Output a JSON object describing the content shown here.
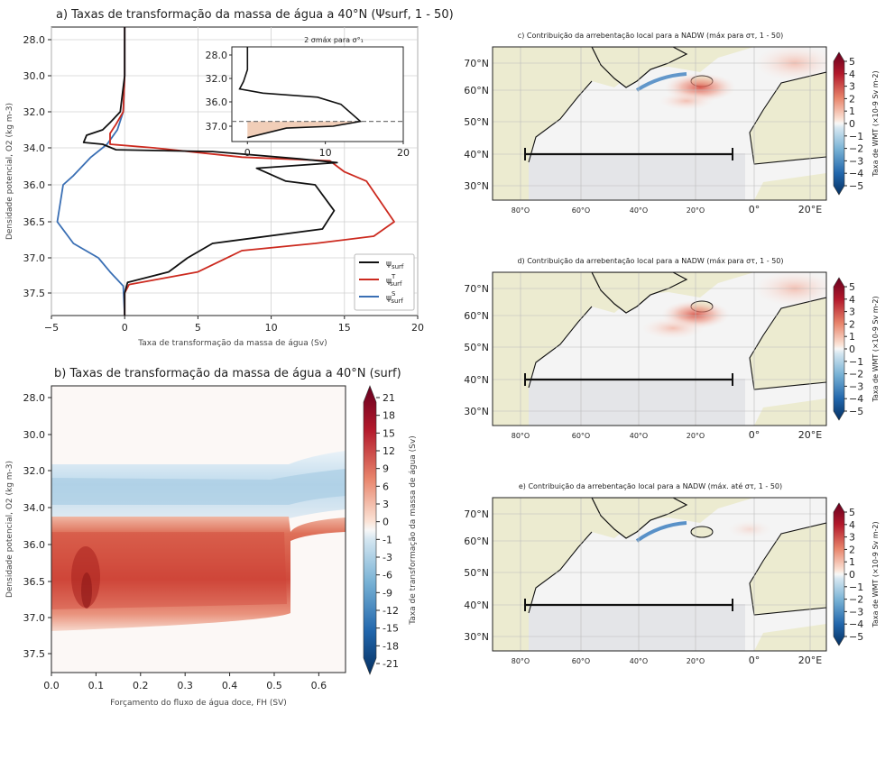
{
  "chart_data": [
    {
      "type": "line",
      "panel": "a",
      "title": "a) Taxas de transformação da massa de água a 40°N (Ψsurf, 1 - 50)",
      "xlabel": "Taxa de transformação da massa de água (Sv)",
      "ylabel": "Densidade potencial, O2 (kg m-3)",
      "xlim": [
        -5,
        20
      ],
      "ylim": [
        38.0,
        27.5
      ],
      "xticks": [
        "−5",
        "0",
        "5",
        "10",
        "15",
        "20"
      ],
      "yticks": [
        "28.0",
        "30.0",
        "32.0",
        "34.0",
        "36.0",
        "36.5",
        "37.0",
        "37.5"
      ],
      "grid": true,
      "legend_position": "bottom-right",
      "legend": [
        "ψsurf",
        "ψ^T surf",
        "ψ^S surf"
      ],
      "colors": {
        "total": "#111111",
        "thermal": "#cc2a1f",
        "haline": "#3a6fb4"
      },
      "series": [
        {
          "key": "total",
          "points": [
            [
              0,
              27.5
            ],
            [
              0,
              30.0
            ],
            [
              -0.3,
              32.0
            ],
            [
              -1,
              32.6
            ],
            [
              -1.5,
              33.0
            ],
            [
              -2.6,
              33.3
            ],
            [
              -2.8,
              33.7
            ],
            [
              -1.5,
              33.8
            ],
            [
              -0.6,
              34.1
            ],
            [
              6,
              34.2
            ],
            [
              12,
              34.6
            ],
            [
              14.5,
              34.8
            ],
            [
              9,
              35.1
            ],
            [
              11,
              35.8
            ],
            [
              13,
              36.0
            ],
            [
              14.3,
              36.35
            ],
            [
              13.5,
              36.6
            ],
            [
              6,
              36.8
            ],
            [
              4.3,
              37.0
            ],
            [
              3,
              37.2
            ],
            [
              0.2,
              37.35
            ],
            [
              0,
              37.5
            ],
            [
              0,
              38.0
            ]
          ]
        },
        {
          "key": "thermal",
          "points": [
            [
              0,
              27.5
            ],
            [
              0,
              30.0
            ],
            [
              -0.1,
              32.0
            ],
            [
              -0.6,
              32.7
            ],
            [
              -1,
              33.2
            ],
            [
              -1,
              33.8
            ],
            [
              2,
              34.0
            ],
            [
              8,
              34.5
            ],
            [
              14,
              34.7
            ],
            [
              15,
              35.3
            ],
            [
              16.5,
              35.8
            ],
            [
              18.4,
              36.5
            ],
            [
              17,
              36.7
            ],
            [
              13,
              36.8
            ],
            [
              8,
              36.9
            ],
            [
              5,
              37.2
            ],
            [
              0.3,
              37.38
            ],
            [
              0,
              37.5
            ],
            [
              0,
              38.0
            ]
          ]
        },
        {
          "key": "haline",
          "points": [
            [
              0,
              27.5
            ],
            [
              0,
              30.0
            ],
            [
              -0.1,
              32.0
            ],
            [
              -0.5,
              33.0
            ],
            [
              -1.2,
              33.8
            ],
            [
              -2.3,
              34.5
            ],
            [
              -3.5,
              35.5
            ],
            [
              -4.2,
              36.0
            ],
            [
              -4.6,
              36.5
            ],
            [
              -3.5,
              36.8
            ],
            [
              -1.8,
              37.0
            ],
            [
              -1,
              37.2
            ],
            [
              -0.1,
              37.4
            ],
            [
              0,
              38.0
            ]
          ]
        }
      ],
      "inset": {
        "title": "2 σmáx para σ°₁",
        "xticks": [
          "0",
          "10",
          "20"
        ],
        "yticks": [
          "28.0",
          "32.0",
          "36.0",
          "37.0"
        ],
        "xlim": [
          -2,
          20
        ],
        "ylim": [
          37.4,
          27.8
        ],
        "threshold": 36.8,
        "points": [
          [
            0,
            27.8
          ],
          [
            0,
            30.5
          ],
          [
            -0.5,
            32.5
          ],
          [
            -1,
            33.8
          ],
          [
            2,
            34.5
          ],
          [
            9,
            35.2
          ],
          [
            12,
            36.1
          ],
          [
            14.5,
            36.8
          ],
          [
            11,
            37.0
          ],
          [
            5,
            37.05
          ],
          [
            0,
            37.3
          ]
        ]
      }
    },
    {
      "type": "heatmap",
      "panel": "b",
      "title": "b) Taxas de transformação da massa de água a 40°N (surf)",
      "xlabel": "Forçamento do fluxo de água doce, FH (SV)",
      "ylabel": "Densidade potencial, O2 (kg m-3)",
      "xticks": [
        "0.0",
        "0.1",
        "0.2",
        "0.3",
        "0.4",
        "0.5",
        "0.6"
      ],
      "yticks": [
        "28.0",
        "30.0",
        "32.0",
        "34.0",
        "36.0",
        "36.5",
        "37.0",
        "37.5"
      ],
      "colorbar_label": "Taxa de transformação da massa de água (Sv)",
      "colorbar_ticks": [
        "21",
        "18",
        "15",
        "12",
        "9",
        "6",
        "3",
        "0",
        "-1",
        "-3",
        "-6",
        "-9",
        "-12",
        "-15",
        "-18",
        "-21"
      ]
    },
    {
      "type": "map",
      "panel": "c",
      "title": "c) Contribuição da arrebentação local para a NADW (máx para στ, 1 - 50)",
      "lat_ticks": [
        "70°N",
        "60°N",
        "50°N",
        "40°N",
        "30°N"
      ],
      "lon_ticks": [
        "80°O",
        "60°O",
        "40°O",
        "20°O",
        "0°",
        "20°E"
      ],
      "colorbar_label": "Taxa de WMT (×10-9 Sv m-2)",
      "colorbar_ticks": [
        "5",
        "4",
        "3",
        "2",
        "1",
        "0",
        "−1",
        "−2",
        "−3",
        "−4",
        "−5"
      ]
    },
    {
      "type": "map",
      "panel": "d",
      "title": "d) Contribuição da arrebentação local para a NADW (máx para στ, 1 - 50)",
      "lat_ticks": [
        "70°N",
        "60°N",
        "50°N",
        "40°N",
        "30°N"
      ],
      "lon_ticks": [
        "80°O",
        "60°O",
        "40°O",
        "20°O",
        "0°",
        "20°E"
      ],
      "colorbar_label": "Taxa de WMT (×10-9 Sv m-2)",
      "colorbar_ticks": [
        "5",
        "4",
        "3",
        "2",
        "1",
        "0",
        "−1",
        "−2",
        "−3",
        "−4",
        "−5"
      ]
    },
    {
      "type": "map",
      "panel": "e",
      "title": "e) Contribuição da arrebentação local para a NADW (máx. até στ, 1 - 50)",
      "lat_ticks": [
        "70°N",
        "60°N",
        "50°N",
        "40°N",
        "30°N"
      ],
      "lon_ticks": [
        "80°O",
        "60°O",
        "40°O",
        "20°O",
        "0°",
        "20°E"
      ],
      "colorbar_label": "Taxa de WMT (×10-9 Sv m-2)",
      "colorbar_ticks": [
        "5",
        "4",
        "3",
        "2",
        "1",
        "0",
        "−1",
        "−2",
        "−3",
        "−4",
        "−5"
      ]
    }
  ]
}
